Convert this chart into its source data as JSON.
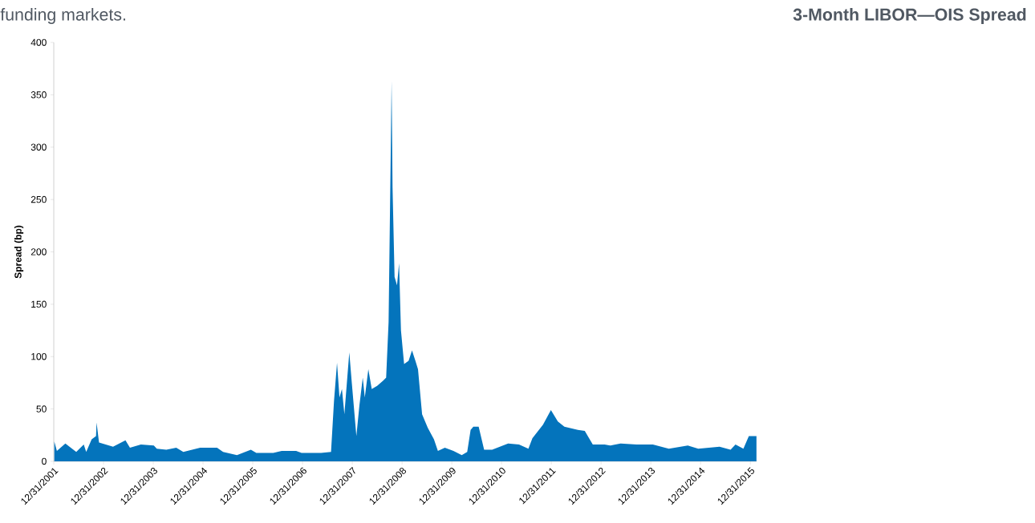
{
  "chart_data": {
    "type": "area",
    "title": "3-Month LIBOR—OIS Spread",
    "annotations": [
      "funding markets."
    ],
    "ylabel": "Spread (bp)",
    "color": "#0474bc",
    "x": [
      "2002-01-04",
      "2002-01-23",
      "2002-03-26",
      "2002-06-14",
      "2002-08-08",
      "2002-08-26",
      "2002-10-05",
      "2002-11-06",
      "2002-11-10",
      "2002-11-28",
      "2003-03-11",
      "2003-06-10",
      "2003-07-13",
      "2003-10-01",
      "2004-01-04",
      "2004-01-26",
      "2004-04-05",
      "2004-06-17",
      "2004-08-08",
      "2004-12-10",
      "2005-04-13",
      "2005-05-27",
      "2005-09-06",
      "2005-12-17",
      "2006-01-26",
      "2006-05-30",
      "2006-07-31",
      "2006-11-14",
      "2006-12-24",
      "2007-05-16",
      "2007-07-28",
      "2007-08-19",
      "2007-09-10",
      "2007-09-28",
      "2007-10-16",
      "2007-11-03",
      "2007-12-09",
      "2007-12-28",
      "2008-01-30",
      "2008-02-21",
      "2008-03-17",
      "2008-04-01",
      "2008-04-27",
      "2008-05-22",
      "2008-07-01",
      "2008-08-14",
      "2008-09-05",
      "2008-09-23",
      "2008-10-08",
      "2008-10-15",
      "2008-10-22",
      "2008-11-06",
      "2008-11-24",
      "2008-12-09",
      "2008-12-23",
      "2009-01-15",
      "2009-02-17",
      "2009-03-14",
      "2009-04-08",
      "2009-04-27",
      "2009-05-27",
      "2009-07-08",
      "2009-08-22",
      "2009-09-20",
      "2009-11-10",
      "2010-01-12",
      "2010-03-14",
      "2010-04-23",
      "2010-05-18",
      "2010-06-07",
      "2010-07-16",
      "2010-08-25",
      "2010-10-23",
      "2011-02-17",
      "2011-05-08",
      "2011-07-16",
      "2011-08-14",
      "2011-10-31",
      "2011-12-28",
      "2012-02-17",
      "2012-04-05",
      "2012-07-13",
      "2012-09-02",
      "2012-10-31",
      "2013-01-26",
      "2013-03-08",
      "2013-05-23",
      "2013-09-17",
      "2014-01-15",
      "2014-05-12",
      "2014-09-28",
      "2014-12-14",
      "2015-05-19",
      "2015-08-08",
      "2015-09-13",
      "2015-11-10",
      "2015-12-20",
      "2016-02-14"
    ],
    "values": [
      19,
      10,
      17,
      9,
      16,
      9,
      21,
      24,
      37,
      18,
      14,
      20,
      13,
      16,
      15,
      12,
      11,
      13,
      9,
      13,
      13,
      9,
      6,
      11,
      8,
      8,
      10,
      10,
      8,
      8,
      9,
      58,
      94,
      61,
      69,
      45,
      104,
      74,
      24,
      53,
      80,
      61,
      88,
      69,
      72,
      77,
      80,
      133,
      288,
      363,
      262,
      176,
      168,
      189,
      125,
      93,
      96,
      106,
      96,
      88,
      45,
      32,
      21,
      10,
      13,
      10,
      6,
      9,
      30,
      33,
      33,
      11,
      11,
      17,
      16,
      12,
      22,
      35,
      49,
      38,
      33,
      30,
      29,
      16,
      16,
      15,
      17,
      16,
      16,
      12,
      15,
      12,
      14,
      11,
      16,
      12,
      24,
      24
    ],
    "xlim": [
      "2001-12-31",
      "2016-02-15"
    ],
    "xticks": [
      {
        "value": "2001-12-31",
        "label": "12/31/2001"
      },
      {
        "value": "2002-12-31",
        "label": "12/31/2002"
      },
      {
        "value": "2003-12-31",
        "label": "12/31/2003"
      },
      {
        "value": "2004-12-31",
        "label": "12/31/2004"
      },
      {
        "value": "2005-12-31",
        "label": "12/31/2005"
      },
      {
        "value": "2006-12-31",
        "label": "12/31/2006"
      },
      {
        "value": "2007-12-31",
        "label": "12/31/2007"
      },
      {
        "value": "2008-12-31",
        "label": "12/31/2008"
      },
      {
        "value": "2009-12-31",
        "label": "12/31/2009"
      },
      {
        "value": "2010-12-31",
        "label": "12/31/2010"
      },
      {
        "value": "2011-12-31",
        "label": "12/31/2011"
      },
      {
        "value": "2012-12-31",
        "label": "12/31/2012"
      },
      {
        "value": "2013-12-31",
        "label": "12/31/2013"
      },
      {
        "value": "2014-12-31",
        "label": "12/31/2014"
      },
      {
        "value": "2015-12-31",
        "label": "12/31/2015"
      }
    ],
    "ylim": [
      0,
      400
    ],
    "yticks": [
      0,
      50,
      100,
      150,
      200,
      250,
      300,
      350,
      400
    ]
  }
}
